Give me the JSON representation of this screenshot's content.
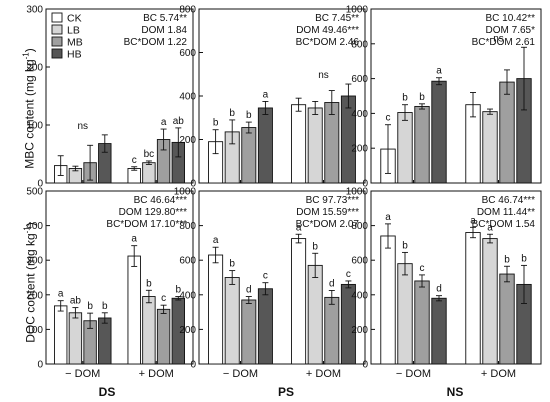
{
  "colors": {
    "CK": "#ffffff",
    "LB": "#d6d6d6",
    "MB": "#9f9f9f",
    "HB": "#575757",
    "frame": "#111111"
  },
  "shared": {
    "legend": [
      "CK",
      "LB",
      "MB",
      "HB"
    ],
    "groups": [
      "− DOM",
      "+ DOM"
    ],
    "soil_labels": [
      "DS",
      "PS",
      "NS"
    ],
    "ylabel_top_text": "MBC content (mg kg",
    "ylabel_bottom_text": "DOC content (mg kg",
    "ylabel_sup": "-1",
    "ylabel_close": ")"
  },
  "chart_data": [
    {
      "type": "bar",
      "panel": "MBC-DS",
      "ylim": [
        0,
        300
      ],
      "yticks": [
        0,
        100,
        200,
        300
      ],
      "show_xlabels": false,
      "stats": [
        "BC 5.74**",
        "DOM 1.84",
        "BC*DOM 1.22"
      ],
      "group_ns": [
        "ns",
        ""
      ],
      "series": [
        {
          "name": "CK",
          "values": [
            30,
            25
          ],
          "errors": [
            17,
            3
          ],
          "letters": [
            "",
            "c"
          ]
        },
        {
          "name": "LB",
          "values": [
            25,
            35
          ],
          "errors": [
            4,
            3
          ],
          "letters": [
            "",
            "bc"
          ]
        },
        {
          "name": "MB",
          "values": [
            35,
            75
          ],
          "errors": [
            30,
            18
          ],
          "letters": [
            "",
            "a"
          ]
        },
        {
          "name": "HB",
          "values": [
            68,
            70
          ],
          "errors": [
            15,
            25
          ],
          "letters": [
            "",
            "ab"
          ]
        }
      ]
    },
    {
      "type": "bar",
      "panel": "MBC-PS",
      "ylim": [
        0,
        800
      ],
      "yticks": [
        0,
        200,
        400,
        600,
        800
      ],
      "show_xlabels": false,
      "stats": [
        "BC 7.45**",
        "DOM 49.46***",
        "BC*DOM 2.46"
      ],
      "group_ns": [
        "",
        "ns"
      ],
      "series": [
        {
          "name": "CK",
          "values": [
            190,
            360
          ],
          "errors": [
            55,
            30
          ],
          "letters": [
            "b",
            ""
          ]
        },
        {
          "name": "LB",
          "values": [
            235,
            345
          ],
          "errors": [
            55,
            30
          ],
          "letters": [
            "b",
            ""
          ]
        },
        {
          "name": "MB",
          "values": [
            255,
            370
          ],
          "errors": [
            25,
            55
          ],
          "letters": [
            "b",
            ""
          ]
        },
        {
          "name": "HB",
          "values": [
            345,
            400
          ],
          "errors": [
            30,
            55
          ],
          "letters": [
            "a",
            ""
          ]
        }
      ]
    },
    {
      "type": "bar",
      "panel": "MBC-NS",
      "ylim": [
        0,
        1000
      ],
      "yticks": [
        0,
        200,
        400,
        600,
        800,
        1000
      ],
      "show_xlabels": false,
      "stats": [
        "BC 10.42**",
        "DOM 7.65*",
        "BC*DOM 2.61"
      ],
      "group_ns": [
        "",
        "ns"
      ],
      "series": [
        {
          "name": "CK",
          "values": [
            195,
            450
          ],
          "errors": [
            140,
            70
          ],
          "letters": [
            "c",
            ""
          ]
        },
        {
          "name": "LB",
          "values": [
            405,
            410
          ],
          "errors": [
            45,
            15
          ],
          "letters": [
            "b",
            ""
          ]
        },
        {
          "name": "MB",
          "values": [
            440,
            580
          ],
          "errors": [
            15,
            70
          ],
          "letters": [
            "b",
            ""
          ]
        },
        {
          "name": "HB",
          "values": [
            585,
            600
          ],
          "errors": [
            20,
            180
          ],
          "letters": [
            "a",
            ""
          ]
        }
      ]
    },
    {
      "type": "bar",
      "panel": "DOC-DS",
      "ylim": [
        0,
        500
      ],
      "yticks": [
        0,
        100,
        200,
        300,
        400,
        500
      ],
      "show_xlabels": true,
      "stats": [
        "BC 46.64***",
        "DOM 129.80***",
        "BC*DOM 17.10***"
      ],
      "group_ns": [
        "",
        ""
      ],
      "series": [
        {
          "name": "CK",
          "values": [
            168,
            312
          ],
          "errors": [
            15,
            30
          ],
          "letters": [
            "a",
            "a"
          ]
        },
        {
          "name": "LB",
          "values": [
            148,
            195
          ],
          "errors": [
            15,
            18
          ],
          "letters": [
            "ab",
            "b"
          ]
        },
        {
          "name": "MB",
          "values": [
            125,
            158
          ],
          "errors": [
            22,
            12
          ],
          "letters": [
            "b",
            "c"
          ]
        },
        {
          "name": "HB",
          "values": [
            133,
            190
          ],
          "errors": [
            15,
            5
          ],
          "letters": [
            "b",
            "b"
          ]
        }
      ]
    },
    {
      "type": "bar",
      "panel": "DOC-PS",
      "ylim": [
        0,
        1000
      ],
      "yticks": [
        0,
        200,
        400,
        600,
        800,
        1000
      ],
      "show_xlabels": true,
      "stats": [
        "BC 97.73***",
        "DOM 15.59***",
        "BC*DOM 2.07"
      ],
      "group_ns": [
        "",
        ""
      ],
      "series": [
        {
          "name": "CK",
          "values": [
            630,
            725
          ],
          "errors": [
            45,
            25
          ],
          "letters": [
            "a",
            "a"
          ]
        },
        {
          "name": "LB",
          "values": [
            500,
            570
          ],
          "errors": [
            40,
            70
          ],
          "letters": [
            "b",
            "b"
          ]
        },
        {
          "name": "MB",
          "values": [
            370,
            385
          ],
          "errors": [
            20,
            40
          ],
          "letters": [
            "d",
            "d"
          ]
        },
        {
          "name": "HB",
          "values": [
            435,
            460
          ],
          "errors": [
            35,
            20
          ],
          "letters": [
            "c",
            "c"
          ]
        }
      ]
    },
    {
      "type": "bar",
      "panel": "DOC-NS",
      "ylim": [
        0,
        1000
      ],
      "yticks": [
        0,
        200,
        400,
        600,
        800,
        1000
      ],
      "show_xlabels": true,
      "stats": [
        "BC 46.74***",
        "DOM 11.44**",
        "BC*DOM 1.54"
      ],
      "group_ns": [
        "",
        ""
      ],
      "series": [
        {
          "name": "CK",
          "values": [
            740,
            760
          ],
          "errors": [
            70,
            30
          ],
          "letters": [
            "a",
            "a"
          ]
        },
        {
          "name": "LB",
          "values": [
            580,
            725
          ],
          "errors": [
            65,
            25
          ],
          "letters": [
            "b",
            "a"
          ]
        },
        {
          "name": "MB",
          "values": [
            480,
            520
          ],
          "errors": [
            35,
            45
          ],
          "letters": [
            "c",
            "b"
          ]
        },
        {
          "name": "HB",
          "values": [
            380,
            460
          ],
          "errors": [
            15,
            110
          ],
          "letters": [
            "d",
            "b"
          ]
        }
      ]
    }
  ]
}
